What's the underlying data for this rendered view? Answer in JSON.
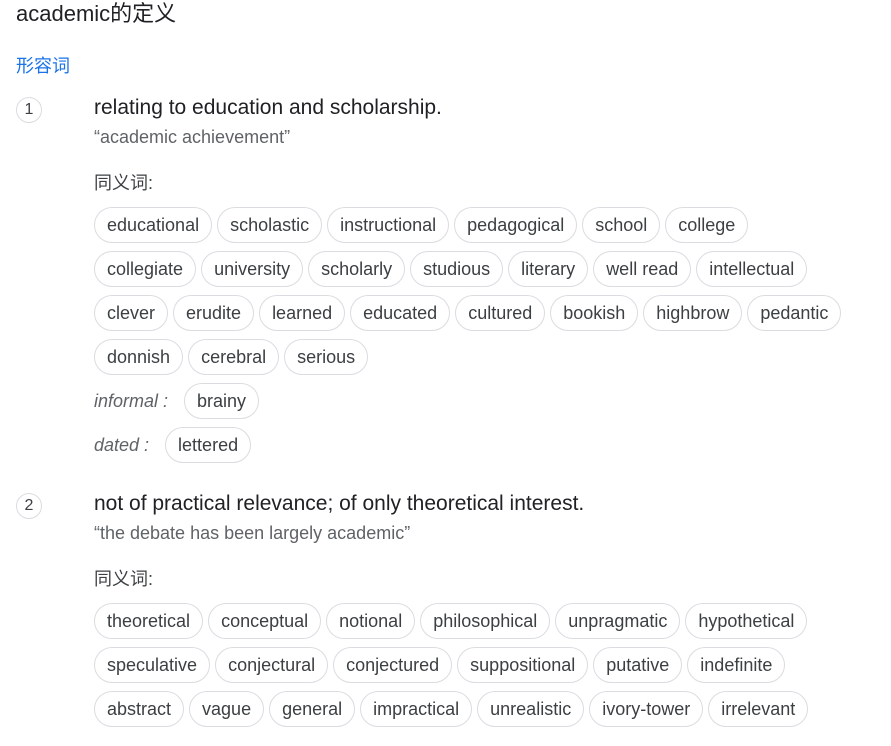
{
  "header": {
    "title": "academic的定义",
    "part_of_speech": "形容词"
  },
  "senses": [
    {
      "number": "1",
      "definition": "relating to education and scholarship.",
      "example": "“academic achievement”",
      "synonyms_label": "同义词:",
      "rows": [
        {
          "chips": [
            "educational",
            "scholastic",
            "instructional",
            "pedagogical",
            "school",
            "college"
          ]
        },
        {
          "chips": [
            "collegiate",
            "university",
            "scholarly",
            "studious",
            "literary",
            "well read",
            "intellectual"
          ]
        },
        {
          "chips": [
            "clever",
            "erudite",
            "learned",
            "educated",
            "cultured",
            "bookish",
            "highbrow",
            "pedantic"
          ]
        },
        {
          "chips": [
            "donnish",
            "cerebral",
            "serious"
          ]
        },
        {
          "register": "informal :",
          "chips": [
            "brainy"
          ]
        },
        {
          "register": "dated :",
          "chips": [
            "lettered"
          ]
        }
      ]
    },
    {
      "number": "2",
      "definition": "not of practical relevance; of only theoretical interest.",
      "example": "“the debate has been largely academic”",
      "synonyms_label": "同义词:",
      "rows": [
        {
          "chips": [
            "theoretical",
            "conceptual",
            "notional",
            "philosophical",
            "unpragmatic",
            "hypothetical"
          ]
        },
        {
          "chips": [
            "speculative",
            "conjectural",
            "conjectured",
            "suppositional",
            "putative",
            "indefinite"
          ]
        },
        {
          "chips": [
            "abstract",
            "vague",
            "general",
            "impractical",
            "unrealistic",
            "ivory-tower",
            "irrelevant"
          ]
        }
      ]
    }
  ]
}
